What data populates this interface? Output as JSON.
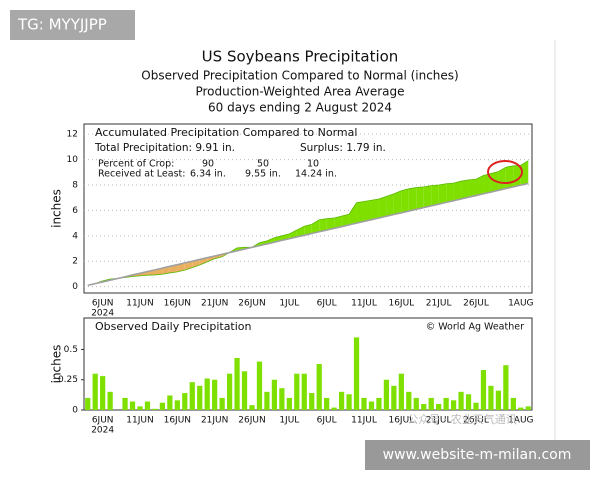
{
  "watermark": "TG: MYYJJPP",
  "footer": "www.website-m-milan.com",
  "social_watermark": "公众号 · 农业天气通讯",
  "header": {
    "title": "US Soybeans Precipitation",
    "lines": [
      "Observed Precipitation Compared to Normal (inches)",
      "Production-Weighted Area Average",
      "60 days ending 2 August 2024"
    ]
  },
  "chart_data": [
    {
      "type": "area",
      "title": "Accumulated Precipitation Compared to Normal",
      "stats": {
        "total": "Total Precipitation: 9.91 in.",
        "surplus": "Surplus: 1.79 in."
      },
      "crop_table": {
        "rows": [
          [
            "Percent of Crop:",
            "90",
            "50",
            "10"
          ],
          [
            "Received at Least:",
            "6.34 in.",
            "9.55 in.",
            "14.24 in."
          ]
        ]
      },
      "y_label": "inches",
      "x_year": "2024",
      "categories": [
        null,
        null,
        "6JUN",
        null,
        null,
        null,
        null,
        "11JUN",
        null,
        null,
        null,
        null,
        "16JUN",
        null,
        null,
        null,
        null,
        "21JUN",
        null,
        null,
        null,
        null,
        "26JUN",
        null,
        null,
        null,
        null,
        "1JUL",
        null,
        null,
        null,
        null,
        "6JUL",
        null,
        null,
        null,
        null,
        "11JUL",
        null,
        null,
        null,
        null,
        "16JUL",
        null,
        null,
        null,
        null,
        "21JUL",
        null,
        null,
        null,
        null,
        "26JUL",
        null,
        null,
        null,
        null,
        null,
        "1AUG",
        null
      ],
      "series": [
        {
          "color": "#7fe000",
          "values": [
            0.1,
            0.25,
            0.45,
            0.6,
            0.65,
            0.72,
            0.8,
            0.85,
            0.9,
            0.92,
            0.98,
            1.08,
            1.16,
            1.3,
            1.5,
            1.7,
            1.95,
            2.2,
            2.35,
            2.7,
            3.05,
            3.1,
            3.1,
            3.45,
            3.6,
            3.85,
            4.0,
            4.15,
            4.45,
            4.75,
            4.9,
            5.25,
            5.35,
            5.4,
            5.55,
            5.7,
            6.6,
            6.7,
            6.8,
            6.9,
            7.1,
            7.3,
            7.55,
            7.7,
            7.8,
            7.85,
            7.95,
            8.0,
            8.1,
            8.15,
            8.3,
            8.4,
            8.45,
            8.75,
            8.9,
            9.05,
            9.4,
            9.5,
            9.55,
            9.91
          ]
        },
        {
          "color": "#a0a0a0",
          "values": [
            0.1,
            0.24,
            0.37,
            0.51,
            0.64,
            0.78,
            0.92,
            1.05,
            1.19,
            1.32,
            1.46,
            1.6,
            1.73,
            1.87,
            2.0,
            2.14,
            2.28,
            2.41,
            2.55,
            2.68,
            2.82,
            2.96,
            3.09,
            3.23,
            3.36,
            3.5,
            3.64,
            3.77,
            3.91,
            4.04,
            4.18,
            4.32,
            4.45,
            4.59,
            4.72,
            4.86,
            5.0,
            5.13,
            5.27,
            5.4,
            5.54,
            5.68,
            5.81,
            5.95,
            6.08,
            6.22,
            6.36,
            6.49,
            6.63,
            6.76,
            6.9,
            7.04,
            7.17,
            7.31,
            7.44,
            7.58,
            7.72,
            7.85,
            7.99,
            8.12
          ]
        }
      ],
      "deficit_color": "#e8b060",
      "ylim": [
        -0.5,
        12.8
      ],
      "yticks": [
        0,
        2,
        4,
        6,
        8,
        10,
        12
      ],
      "grid": true
    },
    {
      "type": "bar",
      "title": "Observed Daily Precipitation",
      "credit": "© World Ag Weather",
      "y_label": "inches",
      "x_year": "2024",
      "categories": [
        null,
        null,
        "6JUN",
        null,
        null,
        null,
        null,
        "11JUN",
        null,
        null,
        null,
        null,
        "16JUN",
        null,
        null,
        null,
        null,
        "21JUN",
        null,
        null,
        null,
        null,
        "26JUN",
        null,
        null,
        null,
        null,
        "1JUL",
        null,
        null,
        null,
        null,
        "6JUL",
        null,
        null,
        null,
        null,
        "11JUL",
        null,
        null,
        null,
        null,
        "16JUL",
        null,
        null,
        null,
        null,
        "21JUL",
        null,
        null,
        null,
        null,
        "26JUL",
        null,
        null,
        null,
        null,
        null,
        "1AUG",
        null
      ],
      "values": [
        0.1,
        0.3,
        0.28,
        0.15,
        0.0,
        0.1,
        0.07,
        0.03,
        0.07,
        0.01,
        0.06,
        0.12,
        0.08,
        0.14,
        0.23,
        0.2,
        0.26,
        0.25,
        0.1,
        0.3,
        0.43,
        0.32,
        0.04,
        0.4,
        0.15,
        0.25,
        0.18,
        0.1,
        0.3,
        0.3,
        0.14,
        0.38,
        0.1,
        0.02,
        0.15,
        0.13,
        0.6,
        0.1,
        0.07,
        0.1,
        0.25,
        0.2,
        0.3,
        0.15,
        0.1,
        0.05,
        0.1,
        0.05,
        0.1,
        0.08,
        0.15,
        0.13,
        0.06,
        0.33,
        0.2,
        0.16,
        0.37,
        0.1,
        0.02,
        0.03
      ],
      "color": "#7fe000",
      "ylim": [
        0,
        0.76
      ],
      "yticks": [
        0,
        0.25,
        0.5
      ],
      "grid": false
    }
  ]
}
